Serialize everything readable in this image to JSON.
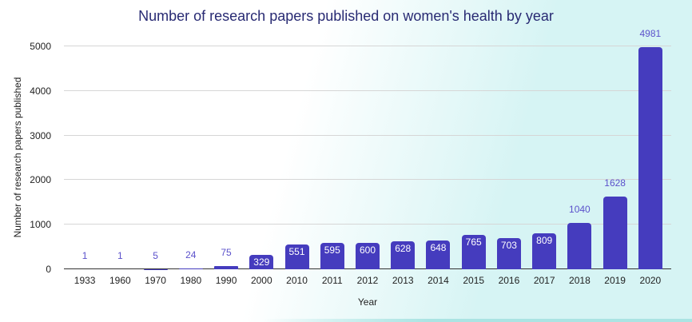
{
  "chart_data": {
    "type": "bar",
    "title": "Number of research papers published on women's health by year",
    "xlabel": "Year",
    "ylabel": "Number of research papers published",
    "categories": [
      "1933",
      "1960",
      "1970",
      "1980",
      "1990",
      "2000",
      "2010",
      "2011",
      "2012",
      "2013",
      "2014",
      "2015",
      "2016",
      "2017",
      "2018",
      "2019",
      "2020"
    ],
    "values": [
      1,
      1,
      5,
      24,
      75,
      329,
      551,
      595,
      600,
      628,
      648,
      765,
      703,
      809,
      1040,
      1628,
      4981
    ],
    "ylim": [
      0,
      5000
    ],
    "yticks": [
      0,
      1000,
      2000,
      3000,
      4000,
      5000
    ],
    "grid": true,
    "legend_position": "none",
    "bar_color": "#453cbe",
    "value_label_outside_color": "#5b51cb",
    "value_label_inside_color": "#ffffff"
  },
  "style": {
    "title_color": "#282a73",
    "axis_text_color": "#222222",
    "gridline_color": "#d6d6d6",
    "baseline_color": "#333333",
    "background_start": "#ffffff",
    "background_end": "#d6f4f4",
    "bottom_accent_color": "#abe4e3"
  }
}
